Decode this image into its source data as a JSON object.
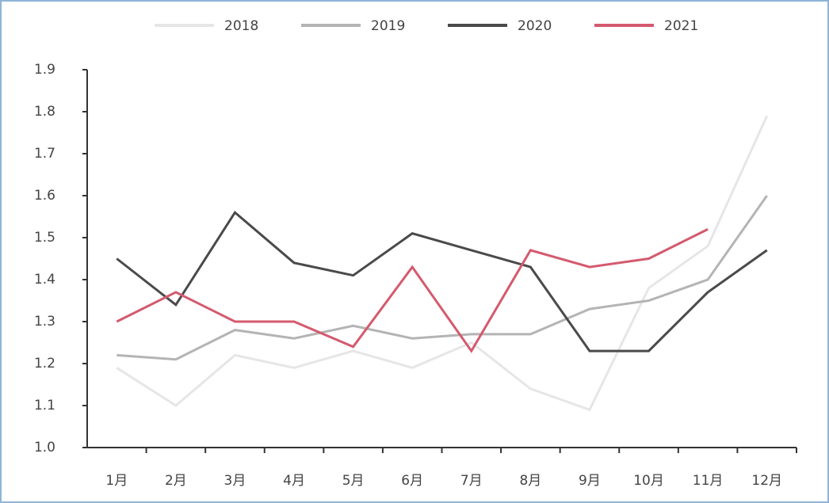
{
  "chart_data": {
    "type": "line",
    "categories": [
      "1月",
      "2月",
      "3月",
      "4月",
      "5月",
      "6月",
      "7月",
      "8月",
      "9月",
      "10月",
      "11月",
      "12月"
    ],
    "series": [
      {
        "name": "2018",
        "color": "#e6e6e6",
        "values": [
          1.19,
          1.1,
          1.22,
          1.19,
          1.23,
          1.19,
          1.25,
          1.14,
          1.09,
          1.38,
          1.48,
          1.79
        ]
      },
      {
        "name": "2019",
        "color": "#b4b4b4",
        "values": [
          1.22,
          1.21,
          1.28,
          1.26,
          1.29,
          1.26,
          1.27,
          1.27,
          1.33,
          1.35,
          1.4,
          1.6
        ]
      },
      {
        "name": "2020",
        "color": "#4a4a4a",
        "values": [
          1.45,
          1.34,
          1.56,
          1.44,
          1.41,
          1.51,
          1.47,
          1.43,
          1.23,
          1.23,
          1.37,
          1.47
        ]
      },
      {
        "name": "2021",
        "color": "#d45a6e",
        "values": [
          1.3,
          1.37,
          1.3,
          1.3,
          1.24,
          1.43,
          1.23,
          1.47,
          1.43,
          1.45,
          1.52,
          null
        ]
      }
    ],
    "ylim": [
      1.0,
      1.9
    ],
    "yticks": [
      {
        "value": 1.0,
        "label": "1.0"
      },
      1.1,
      1.2,
      1.3,
      1.4,
      1.5,
      1.6,
      1.7,
      1.8,
      1.9
    ],
    "legend": "top"
  }
}
